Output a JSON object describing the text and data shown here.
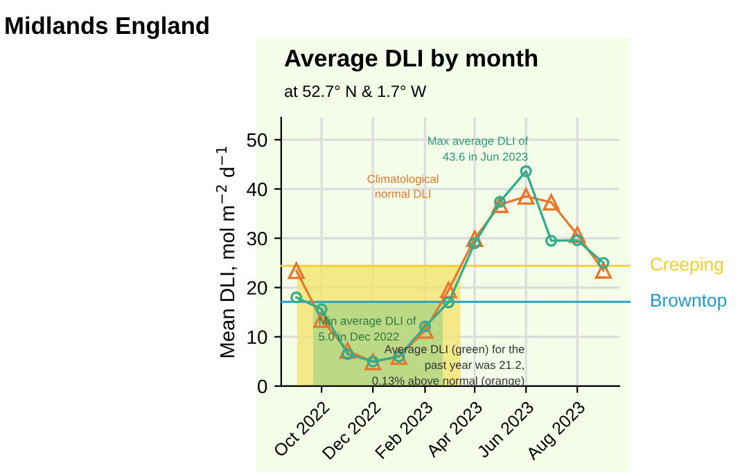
{
  "chart_data": {
    "type": "line",
    "title": "Average DLI by month",
    "subtitle": "at 52.7° N & 1.7° W",
    "ylabel": "Mean DLI, mol m$^{−2}$ d$^{−1}$",
    "x": [
      "2022-09",
      "2022-10",
      "2022-11",
      "2022-12",
      "2023-01",
      "2023-02",
      "2023-03",
      "2023-04",
      "2023-05",
      "2023-06",
      "2023-07",
      "2023-08",
      "2023-09"
    ],
    "series": [
      {
        "type": "area",
        "color": "#f3e16a",
        "x": [
          "2022-09-02",
          "2023-03-15"
        ],
        "values": [
          24.4,
          24.4
        ]
      },
      {
        "type": "area",
        "color": "#a9d486",
        "x": [
          "2022-09-21",
          "2023-02-22"
        ],
        "values": [
          17.1,
          17.1
        ]
      },
      {
        "name": "Climatological normal DLI",
        "color": "#e8772e",
        "marker": "triangle",
        "values": [
          23.4,
          13.5,
          7.2,
          4.9,
          6.0,
          11.3,
          19.5,
          29.9,
          36.8,
          38.5,
          37.3,
          30.7,
          23.5
        ]
      },
      {
        "color": "#35ad8c",
        "marker": "circle",
        "values": [
          18.0,
          15.6,
          6.5,
          5.0,
          6.0,
          12.1,
          17.0,
          29.0,
          37.4,
          43.6,
          29.5,
          29.6,
          25.0
        ]
      }
    ],
    "xlim": [
      "2022-08-14",
      "2023-09-20"
    ],
    "xticks": [
      {
        "value": "2022-10",
        "label": "Oct 2022"
      },
      {
        "value": "2022-12",
        "label": "Dec 2022"
      },
      {
        "value": "2023-02",
        "label": "Feb 2023"
      },
      {
        "value": "2023-04",
        "label": "Apr 2023"
      },
      {
        "value": "2023-06",
        "label": "Jun 2023"
      },
      {
        "value": "2023-08",
        "label": "Aug 2023"
      }
    ],
    "ylim": [
      0,
      54.5
    ],
    "yticks": [
      0,
      10,
      20,
      30,
      40,
      50
    ],
    "grid": true,
    "ref_lines": [
      {
        "axis": "y",
        "value": 24.4,
        "label": "Creeping",
        "color": "#f2cf2a"
      },
      {
        "axis": "y",
        "value": 17.1,
        "label": "Browntop",
        "color": "#1f9ac9"
      }
    ],
    "annotations": [
      "Midlands England",
      "Max average DLI of\n43.6 in Jun 2023",
      "Min average DLI of\n5.0 in Dec 2022",
      "Average DLI (green) for the\npast year was 21.2,\n0.13% above normal (orange)"
    ]
  }
}
